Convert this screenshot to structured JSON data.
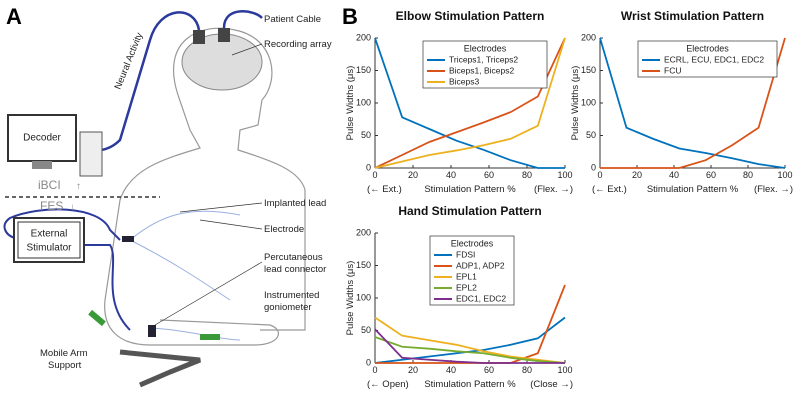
{
  "panel_a": {
    "label": "A",
    "patient_cable": "Patient Cable",
    "recording_array": "Recording array",
    "neural_activity": "Neural Activity",
    "decoder": "Decoder",
    "ibci": "iBCI",
    "fes": "FES",
    "external_stimulator": [
      "External",
      "Stimulator"
    ],
    "implanted_lead": "Implanted lead",
    "electrode": "Electrode",
    "percutaneous": [
      "Percutaneous",
      "lead connector"
    ],
    "goniometer": [
      "Instrumented",
      "goniometer"
    ],
    "arm_support": [
      "Mobile Arm",
      "Support"
    ]
  },
  "panel_b": {
    "label": "B"
  },
  "chart_data": [
    {
      "type": "line",
      "title": "Elbow Stimulation Pattern",
      "ylabel": "Pulse Widths (μs)",
      "xlabel": "Stimulation Pattern %",
      "xlabel_left": "(← Ext.)",
      "xlabel_right": "(Flex. →)",
      "legend_title": "Electrodes",
      "legend": "upper center",
      "x": [
        0,
        14.3,
        28.6,
        42.9,
        57.1,
        71.4,
        85.7,
        100
      ],
      "xlim": [
        0,
        100
      ],
      "xticks": [
        0,
        20,
        40,
        60,
        80,
        100
      ],
      "ylim": [
        0,
        200
      ],
      "yticks": [
        0,
        50,
        100,
        150,
        200
      ],
      "series": [
        {
          "name": "Triceps1, Triceps2",
          "color": "#0072bd",
          "values": [
            200,
            78,
            60,
            42,
            28,
            12,
            0,
            0
          ]
        },
        {
          "name": "Biceps1, Biceps2",
          "color": "#d95319",
          "values": [
            0,
            20,
            40,
            55,
            70,
            86,
            110,
            200
          ]
        },
        {
          "name": "Biceps3",
          "color": "#edb120",
          "values": [
            0,
            10,
            20,
            27,
            35,
            45,
            65,
            200
          ]
        }
      ]
    },
    {
      "type": "line",
      "title": "Wrist Stimulation Pattern",
      "ylabel": "Pulse Widths (μs)",
      "xlabel": "Stimulation Pattern %",
      "xlabel_left": "(← Ext.)",
      "xlabel_right": "(Flex. →)",
      "legend_title": "Electrodes",
      "legend": "upper center",
      "x": [
        0,
        14.3,
        28.6,
        42.9,
        57.1,
        71.4,
        85.7,
        100
      ],
      "xlim": [
        0,
        100
      ],
      "xticks": [
        0,
        20,
        40,
        60,
        80,
        100
      ],
      "ylim": [
        0,
        200
      ],
      "yticks": [
        0,
        50,
        100,
        150,
        200
      ],
      "series": [
        {
          "name": "ECRL, ECU, EDC1, EDC2",
          "color": "#0072bd",
          "values": [
            200,
            62,
            45,
            30,
            23,
            15,
            6,
            0
          ]
        },
        {
          "name": "FCU",
          "color": "#d95319",
          "values": [
            0,
            0,
            0,
            0,
            12,
            35,
            62,
            200
          ]
        }
      ]
    },
    {
      "type": "line",
      "title": "Hand Stimulation Pattern",
      "ylabel": "Pulse Widths (μs)",
      "xlabel": "Stimulation Pattern %",
      "xlabel_left": "(← Open)",
      "xlabel_right": "(Close →)",
      "legend_title": "Electrodes",
      "legend": "upper left",
      "x": [
        0,
        14.3,
        28.6,
        42.9,
        57.1,
        71.4,
        85.7,
        100
      ],
      "xlim": [
        0,
        100
      ],
      "xticks": [
        0,
        20,
        40,
        60,
        80,
        100
      ],
      "ylim": [
        0,
        200
      ],
      "yticks": [
        0,
        50,
        100,
        150,
        200
      ],
      "series": [
        {
          "name": "FDSI",
          "color": "#0072bd",
          "values": [
            0,
            5,
            10,
            15,
            20,
            28,
            38,
            70
          ]
        },
        {
          "name": "ADP1, ADP2",
          "color": "#d95319",
          "values": [
            0,
            0,
            0,
            0,
            0,
            0,
            15,
            120
          ]
        },
        {
          "name": "EPL1",
          "color": "#edb120",
          "values": [
            70,
            42,
            35,
            28,
            18,
            10,
            5,
            0
          ]
        },
        {
          "name": "EPL2",
          "color": "#77ac30",
          "values": [
            40,
            25,
            22,
            18,
            15,
            8,
            3,
            0
          ]
        },
        {
          "name": "EDC1, EDC2",
          "color": "#7e2f8e",
          "values": [
            52,
            8,
            5,
            2,
            0,
            0,
            0,
            0
          ]
        }
      ]
    }
  ]
}
